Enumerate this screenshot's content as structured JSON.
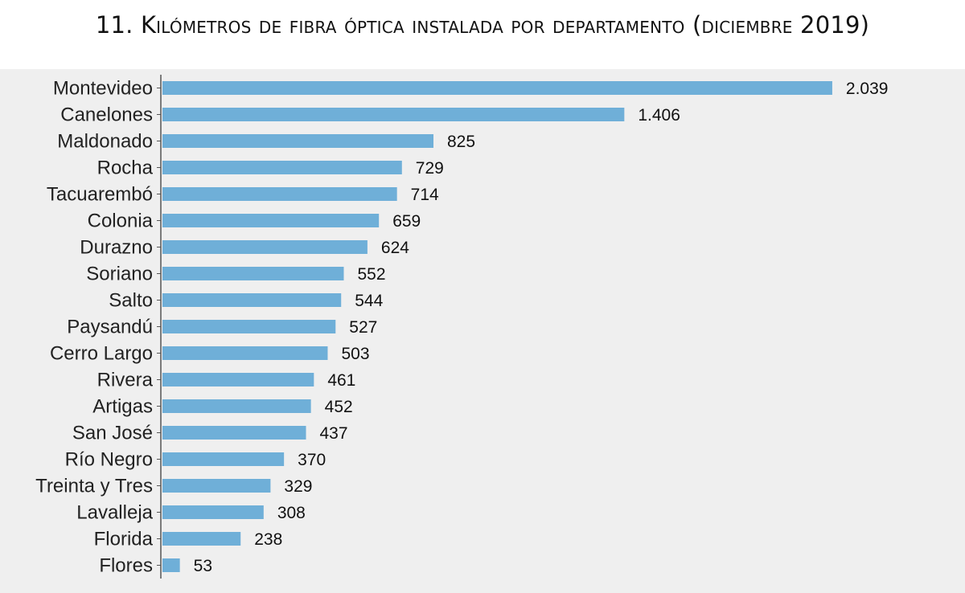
{
  "chart_data": {
    "type": "bar",
    "orientation": "horizontal",
    "title": "11. Kilómetros de fibra óptica instalada por departamento (diciembre 2019)",
    "xlabel": "",
    "ylabel": "",
    "categories": [
      "Montevideo",
      "Canelones",
      "Maldonado",
      "Rocha",
      "Tacuarembó",
      "Colonia",
      "Durazno",
      "Soriano",
      "Salto",
      "Paysandú",
      "Cerro Largo",
      "Rivera",
      "Artigas",
      "San José",
      "Río Negro",
      "Treinta y Tres",
      "Lavalleja",
      "Florida",
      "Flores"
    ],
    "values": [
      2039,
      1406,
      825,
      729,
      714,
      659,
      624,
      552,
      544,
      527,
      503,
      461,
      452,
      437,
      370,
      329,
      308,
      238,
      53
    ],
    "value_labels": [
      "2.039",
      "1.406",
      "825",
      "729",
      "714",
      "659",
      "624",
      "552",
      "544",
      "527",
      "503",
      "461",
      "452",
      "437",
      "370",
      "329",
      "308",
      "238",
      "53"
    ],
    "bar_color": "#6fafd8",
    "background_color": "#efefef",
    "grid": false,
    "legend": "none"
  }
}
